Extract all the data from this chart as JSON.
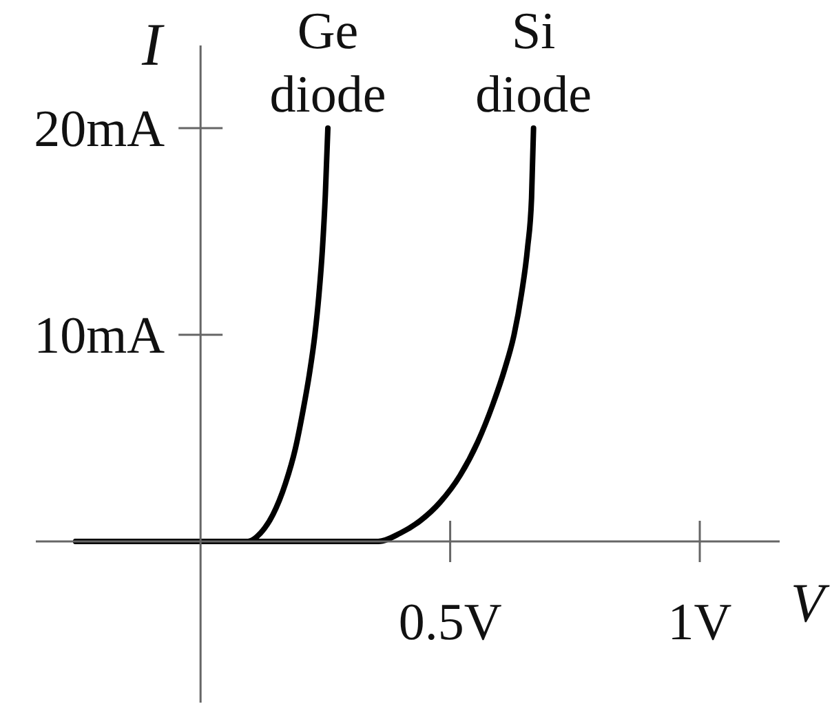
{
  "chart_data": {
    "type": "line",
    "xlabel": "V",
    "ylabel": "I",
    "xlim": [
      -0.33,
      1.16
    ],
    "ylim": [
      -7.8,
      24
    ],
    "xticks": [
      {
        "value": 0.5,
        "label": "0.5V"
      },
      {
        "value": 1,
        "label": "1V"
      }
    ],
    "yticks": [
      {
        "value": 10,
        "label": "10mA"
      },
      {
        "value": 20,
        "label": "20mA"
      }
    ],
    "marker": "none",
    "line_style": "solid",
    "series": [
      {
        "name": "Ge diode",
        "color": "#000000",
        "x": [
          -0.25,
          0.095,
          0.12,
          0.145,
          0.17,
          0.19,
          0.205,
          0.218,
          0.229,
          0.237,
          0.244,
          0.25,
          0.255
        ],
        "values": [
          0,
          0,
          0.4,
          1.3,
          2.8,
          4.5,
          6.3,
          8.1,
          10.0,
          11.9,
          14.1,
          16.8,
          20.0
        ]
      },
      {
        "name": "Si diode",
        "color": "#000000",
        "x": [
          -0.25,
          0.356,
          0.4,
          0.44,
          0.48,
          0.52,
          0.555,
          0.585,
          0.61,
          0.628,
          0.643,
          0.655,
          0.663,
          0.667
        ],
        "values": [
          0,
          0,
          0.4,
          1.0,
          1.9,
          3.2,
          4.8,
          6.6,
          8.4,
          10.0,
          12.0,
          14.2,
          16.6,
          20.0
        ]
      }
    ]
  }
}
